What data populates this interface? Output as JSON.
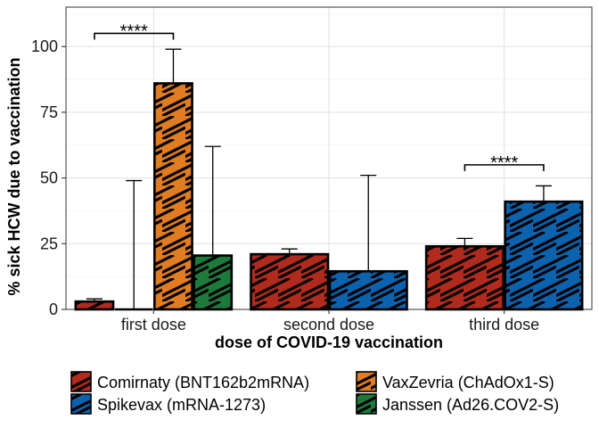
{
  "chart_data": {
    "type": "bar",
    "xlabel": "dose of COVID-19 vaccination",
    "ylabel": "% sick HCW due to vaccination",
    "ylim": [
      0,
      115
    ],
    "yticks": [
      0,
      25,
      50,
      75,
      100
    ],
    "grid": true,
    "legend_position": "bottom",
    "categories": [
      "first dose",
      "second dose",
      "third dose"
    ],
    "series": [
      {
        "name": "Comirnaty (BNT162b2mRNA)",
        "color": "#b02a1e",
        "points": [
          {
            "category": "first dose",
            "value": 3,
            "err_upper": 4
          },
          {
            "category": "second dose",
            "value": 21,
            "err_upper": 23
          },
          {
            "category": "third dose",
            "value": 24,
            "err_upper": 27
          }
        ]
      },
      {
        "name": "Spikevax (mRNA-1273)",
        "color": "#0d62ad",
        "points": [
          {
            "category": "first dose",
            "value": 0,
            "err_upper": 49
          },
          {
            "category": "second dose",
            "value": 14.5,
            "err_upper": 51
          },
          {
            "category": "third dose",
            "value": 41,
            "err_upper": 47
          }
        ]
      },
      {
        "name": "VaxZevria (ChAdOx1-S)",
        "color": "#e07c22",
        "points": [
          {
            "category": "first dose",
            "value": 86,
            "err_upper": 99
          }
        ]
      },
      {
        "name": "Janssen (Ad26.COV2-S)",
        "color": "#1e7a3c",
        "points": [
          {
            "category": "first dose",
            "value": 20.5,
            "err_upper": 62
          }
        ]
      }
    ],
    "significance": [
      {
        "category": "first dose",
        "from_series": "Comirnaty (BNT162b2mRNA)",
        "to_series": "VaxZevria (ChAdOx1-S)",
        "y": 105,
        "label": "****"
      },
      {
        "category": "third dose",
        "from_series": "Comirnaty (BNT162b2mRNA)",
        "to_series": "Spikevax (mRNA-1273)",
        "y": 55,
        "label": "****"
      }
    ],
    "legend_order": [
      "Comirnaty (BNT162b2mRNA)",
      "VaxZevria (ChAdOx1-S)",
      "Spikevax (mRNA-1273)",
      "Janssen (Ad26.COV2-S)"
    ]
  }
}
